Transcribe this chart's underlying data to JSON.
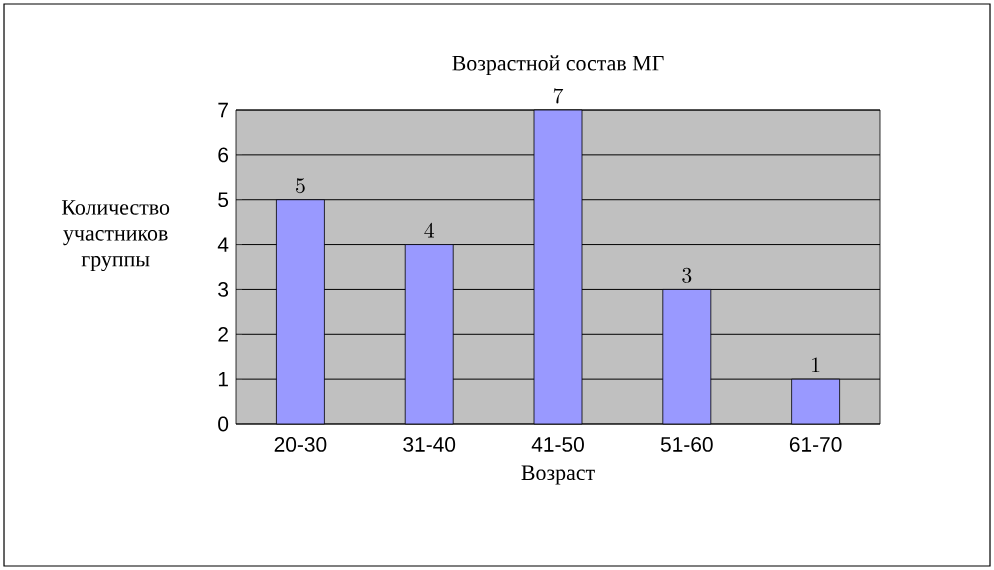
{
  "chart_data": {
    "type": "bar",
    "title": "Возрастной состав МГ",
    "xlabel": "Возраст",
    "ylabel": "Количество участников группы",
    "categories": [
      "20-30",
      "31-40",
      "41-50",
      "51-60",
      "61-70"
    ],
    "values": [
      5,
      4,
      7,
      3,
      1
    ],
    "color": "#9999ff",
    "ylim": [
      0,
      7
    ],
    "yticks": [
      0,
      1,
      2,
      3,
      4,
      5,
      6,
      7
    ],
    "grid": "y",
    "data_labels": true
  }
}
